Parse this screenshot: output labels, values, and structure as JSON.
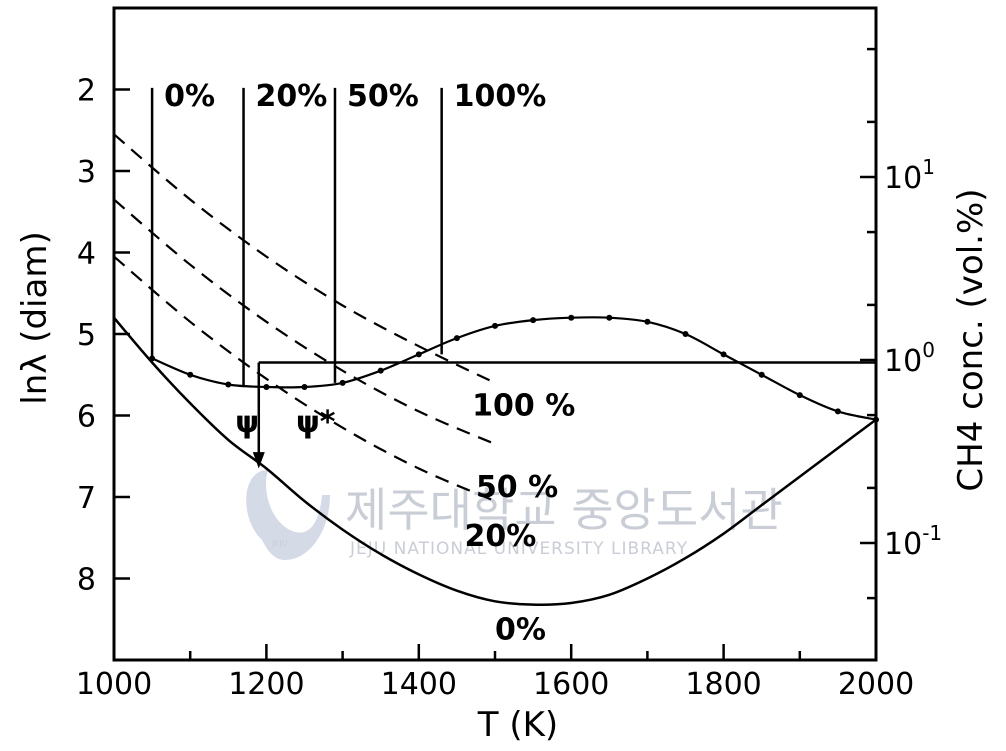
{
  "chart_data": {
    "type": "line",
    "xlabel": "T (K)",
    "ylabel": "lnλ (diam)",
    "y2label": "CH4 conc. (vol.%)",
    "xlim": [
      1000,
      2000
    ],
    "ylim": [
      9.0,
      1.0
    ],
    "y_inverted": true,
    "y2_scale": "log",
    "x_ticks": [
      "1000",
      "1200",
      "1400",
      "1600",
      "1800",
      "2000"
    ],
    "y_ticks": [
      "2",
      "3",
      "4",
      "5",
      "6",
      "7",
      "8"
    ],
    "y2_ticks": [
      {
        "base": "10",
        "exp": "1"
      },
      {
        "base": "10",
        "exp": "0"
      },
      {
        "base": "10",
        "exp": "-1"
      }
    ],
    "series": [
      {
        "name": "0%",
        "style": "solid",
        "x": [
          1000,
          1050,
          1100,
          1150,
          1200,
          1250,
          1300,
          1350,
          1400,
          1450,
          1500,
          1550,
          1600,
          1650,
          1700,
          1750,
          1800,
          1850,
          1900,
          1950,
          2000
        ],
        "y": [
          4.8,
          5.35,
          5.85,
          6.3,
          6.65,
          7.05,
          7.4,
          7.7,
          7.95,
          8.15,
          8.28,
          8.32,
          8.3,
          8.2,
          8.0,
          7.75,
          7.45,
          7.1,
          6.75,
          6.4,
          6.05
        ]
      },
      {
        "name": "20%",
        "style": "dashed",
        "x": [
          1000,
          1100,
          1200,
          1300,
          1400,
          1500
        ],
        "y": [
          4.05,
          4.85,
          5.55,
          6.15,
          6.65,
          7.05
        ]
      },
      {
        "name": "50%",
        "style": "dashed",
        "x": [
          1000,
          1100,
          1200,
          1300,
          1400,
          1500
        ],
        "y": [
          3.35,
          4.15,
          4.85,
          5.45,
          5.95,
          6.35
        ]
      },
      {
        "name": "100%",
        "style": "dashed",
        "x": [
          1000,
          1100,
          1200,
          1300,
          1400,
          1500
        ],
        "y": [
          2.55,
          3.35,
          4.05,
          4.65,
          5.15,
          5.6
        ]
      },
      {
        "name": "CH4 conc.",
        "style": "dotted-solid",
        "axis": "right",
        "x": [
          1050,
          1100,
          1150,
          1200,
          1250,
          1300,
          1350,
          1400,
          1450,
          1500,
          1550,
          1600,
          1650,
          1700,
          1750,
          1800,
          1850,
          1900,
          1950,
          2000
        ],
        "y": [
          5.3,
          5.5,
          5.62,
          5.65,
          5.65,
          5.6,
          5.45,
          5.25,
          5.05,
          4.9,
          4.83,
          4.8,
          4.8,
          4.85,
          5.0,
          5.25,
          5.5,
          5.75,
          5.95,
          6.05
        ]
      }
    ],
    "vertical_markers": [
      {
        "label": "0%",
        "x": 1050
      },
      {
        "label": "20%",
        "x": 1170
      },
      {
        "label": "50%",
        "x": 1290
      },
      {
        "label": "100%",
        "x": 1430
      }
    ],
    "horizontal_line": {
      "y": 5.35,
      "x_start": 1190,
      "x_end": 2000
    },
    "psi_markers": [
      {
        "label": "ψ",
        "x": 1180
      },
      {
        "label": "ψ*",
        "x": 1270
      }
    ],
    "curve_labels": [
      {
        "text": "100 %",
        "series": "100%"
      },
      {
        "text": "50 %",
        "series": "50%"
      },
      {
        "text": "20%",
        "series": "20%"
      },
      {
        "text": "0%",
        "series": "0%"
      }
    ],
    "grid": false,
    "legend": "none"
  },
  "watermark": {
    "korean": "제주대학교 중앙도서관",
    "english": "JEJU NATIONAL UNIVERSITY LIBRARY",
    "emblem_text": "JEJU"
  }
}
